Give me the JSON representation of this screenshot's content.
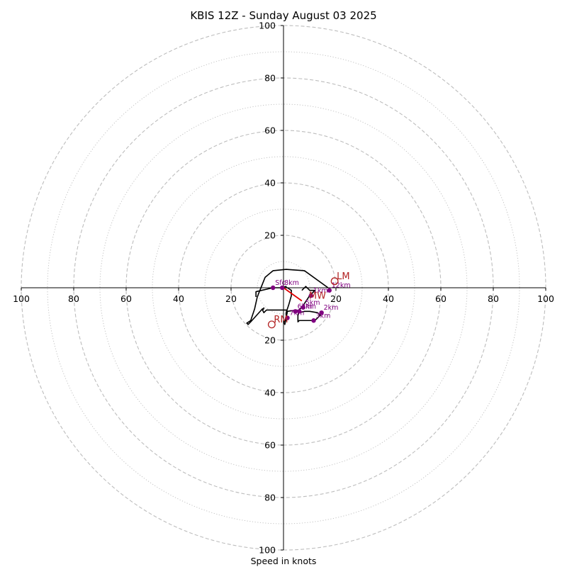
{
  "chart_data": {
    "type": "hodograph",
    "title": "KBIS 12Z - Sunday August 03 2025",
    "xlabel": "Speed in knots",
    "rings_major": [
      20,
      40,
      60,
      80,
      100
    ],
    "rings_minor": [
      10,
      30,
      50,
      70,
      90
    ],
    "axis_tick_labels": [
      "100",
      "80",
      "60",
      "40",
      "20",
      "20",
      "40",
      "60",
      "80",
      "100"
    ],
    "yaxis_tick_labels": [
      "100",
      "80",
      "60",
      "40",
      "20",
      "20",
      "40",
      "60",
      "80",
      "100"
    ],
    "trace": [
      [
        17.0,
        0.0
      ],
      [
        8.0,
        6.5
      ],
      [
        1.0,
        7.0
      ],
      [
        -4.0,
        6.5
      ],
      [
        -7.0,
        4.0
      ],
      [
        -10.0,
        -3.5
      ],
      [
        -11.0,
        -8.0
      ],
      [
        -12.5,
        -12.5
      ],
      [
        -14.0,
        -13.5
      ],
      [
        -13.5,
        -14.0
      ],
      [
        -12.5,
        -13.0
      ],
      [
        -8.0,
        -8.0
      ],
      [
        -8.0,
        -8.5
      ],
      [
        -7.5,
        -9.5
      ],
      [
        -7.0,
        -9.0
      ],
      [
        -6.5,
        -8.5
      ],
      [
        1.0,
        -8.5
      ],
      [
        1.5,
        -9.0
      ],
      [
        0.5,
        -14.0
      ],
      [
        0.0,
        -13.0
      ],
      [
        1.0,
        -12.5
      ],
      [
        1.0,
        -9.5
      ],
      [
        2.0,
        -6.5
      ],
      [
        3.0,
        -3.0
      ],
      [
        3.0,
        -1.0
      ],
      [
        1.5,
        0.0
      ],
      [
        1.0,
        0.0
      ],
      [
        1.0,
        0.5
      ],
      [
        -1.0,
        0.0
      ],
      [
        -4.0,
        0.0
      ],
      [
        -10.5,
        -1.5
      ],
      [
        -10.5,
        -3.5
      ]
    ],
    "trace_b": [
      [
        -8.0,
        -8.5
      ],
      [
        -7.5,
        -8.0
      ],
      [
        -7.5,
        -7.5
      ]
    ],
    "trace_c": [
      [
        1.5,
        -9.0
      ],
      [
        5.0,
        -8.5
      ],
      [
        6.0,
        -9.5
      ],
      [
        8.0,
        -9.0
      ],
      [
        10.0,
        -9.0
      ],
      [
        13.0,
        -9.5
      ],
      [
        14.0,
        -10.5
      ],
      [
        12.5,
        -12.0
      ],
      [
        11.5,
        -12.5
      ],
      [
        6.0,
        -12.5
      ],
      [
        5.5,
        -13.0
      ],
      [
        5.5,
        -10.5
      ],
      [
        6.0,
        -8.5
      ],
      [
        8.0,
        -6.0
      ],
      [
        10.0,
        -3.0
      ],
      [
        11.0,
        -2.0
      ],
      [
        12.0,
        -1.0
      ],
      [
        10.0,
        -1.0
      ],
      [
        8.5,
        0.5
      ],
      [
        7.0,
        -1.0
      ]
    ],
    "height_points": [
      {
        "label": "Sfc",
        "u": -4.0,
        "v": 0.0
      },
      {
        "label": "1km",
        "u": 10.5,
        "v": -3.0
      },
      {
        "label": "2km",
        "u": 14.5,
        "v": -9.5
      },
      {
        "label": "3km",
        "u": 11.5,
        "v": -12.5
      },
      {
        "label": "4km",
        "u": 6.0,
        "v": -9.0
      },
      {
        "label": "5km",
        "u": 7.5,
        "v": -7.5
      },
      {
        "label": "6km",
        "u": 4.5,
        "v": -9.0
      },
      {
        "label": "7km",
        "u": 1.5,
        "v": -11.5
      },
      {
        "label": "8km",
        "u": -0.5,
        "v": 0.0
      },
      {
        "label": "12km",
        "u": 17.5,
        "v": -1.0
      }
    ],
    "storm_motion": [
      {
        "label": "LM",
        "u": 19.5,
        "v": 2.5
      },
      {
        "label": "RM",
        "u": -4.5,
        "v": -14.0
      }
    ],
    "mean_wind": {
      "label": "MW",
      "u": 7.0,
      "v": -5.0
    },
    "shear_vector": {
      "from_u": 0.0,
      "from_v": 0.0,
      "to_u": 7.0,
      "to_v": -5.0
    },
    "colors": {
      "grid": "#bdbdbd",
      "trace": "#000000",
      "points": "#800080",
      "storm": "#b22222",
      "shear": "#e00000"
    }
  }
}
